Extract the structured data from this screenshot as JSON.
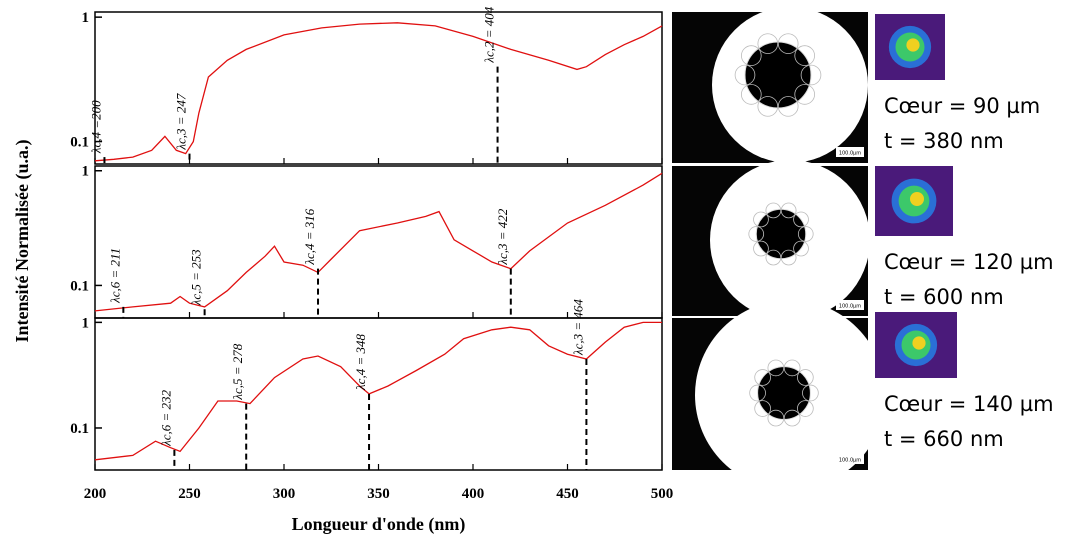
{
  "chart_data": [
    {
      "type": "line",
      "log_y": true,
      "ylim": [
        0.066,
        1.1
      ],
      "yticks": [
        0.1,
        1
      ],
      "series": [
        {
          "color": "#e01010",
          "x": [
            200,
            210,
            220,
            230,
            237,
            243,
            248,
            252,
            255,
            260,
            270,
            280,
            300,
            320,
            340,
            360,
            380,
            400,
            420,
            440,
            455,
            460,
            470,
            480,
            490,
            500
          ],
          "values": [
            0.07,
            0.072,
            0.075,
            0.085,
            0.11,
            0.085,
            0.08,
            0.1,
            0.17,
            0.33,
            0.45,
            0.55,
            0.72,
            0.82,
            0.88,
            0.9,
            0.85,
            0.7,
            0.55,
            0.45,
            0.38,
            0.4,
            0.5,
            0.6,
            0.7,
            0.85
          ]
        }
      ],
      "annotations": [
        {
          "label": "λc,4 =200",
          "x": 205,
          "y": 0.075
        },
        {
          "label": "λc,3 = 247",
          "x": 250,
          "y": 0.08
        },
        {
          "label": "λc,2 = 404",
          "x": 413,
          "y": 0.4
        }
      ]
    },
    {
      "type": "line",
      "log_y": true,
      "ylim": [
        0.052,
        1.1
      ],
      "yticks": [
        0.1,
        1
      ],
      "ylabel": "Intensité Normalisée (u.a.)",
      "series": [
        {
          "color": "#e01010",
          "x": [
            200,
            220,
            240,
            245,
            250,
            258,
            270,
            280,
            290,
            295,
            300,
            310,
            318,
            325,
            340,
            360,
            375,
            382,
            390,
            400,
            410,
            420,
            430,
            450,
            470,
            490,
            500
          ],
          "values": [
            0.06,
            0.065,
            0.07,
            0.08,
            0.07,
            0.065,
            0.09,
            0.13,
            0.18,
            0.22,
            0.16,
            0.15,
            0.13,
            0.17,
            0.3,
            0.35,
            0.4,
            0.44,
            0.25,
            0.2,
            0.16,
            0.14,
            0.2,
            0.35,
            0.5,
            0.75,
            0.95
          ]
        }
      ],
      "annotations": [
        {
          "label": "λc,6 = 211",
          "x": 215,
          "y": 0.065
        },
        {
          "label": "λc,5 = 253",
          "x": 258,
          "y": 0.062
        },
        {
          "label": "λc,4 = 316",
          "x": 318,
          "y": 0.14
        },
        {
          "label": "λc,3 = 422",
          "x": 420,
          "y": 0.14
        }
      ]
    },
    {
      "type": "line",
      "log_y": true,
      "ylim": [
        0.04,
        1.1
      ],
      "yticks": [
        0.1,
        1
      ],
      "xlim": [
        200,
        500
      ],
      "xticks": [
        200,
        250,
        300,
        350,
        400,
        450,
        500
      ],
      "xlabel": "Longueur d'onde (nm)",
      "series": [
        {
          "color": "#e01010",
          "x": [
            200,
            220,
            232,
            240,
            245,
            255,
            265,
            275,
            282,
            295,
            310,
            318,
            330,
            340,
            345,
            355,
            370,
            385,
            395,
            410,
            420,
            430,
            440,
            450,
            460,
            470,
            480,
            490,
            500
          ],
          "values": [
            0.05,
            0.055,
            0.075,
            0.065,
            0.06,
            0.1,
            0.18,
            0.18,
            0.17,
            0.3,
            0.45,
            0.48,
            0.38,
            0.25,
            0.21,
            0.25,
            0.35,
            0.5,
            0.7,
            0.85,
            0.9,
            0.85,
            0.6,
            0.5,
            0.45,
            0.65,
            0.9,
            1.0,
            1.0
          ]
        }
      ],
      "annotations": [
        {
          "label": "λc,6 = 232",
          "x": 242,
          "y": 0.062
        },
        {
          "label": "λc,5 = 278",
          "x": 280,
          "y": 0.17
        },
        {
          "label": "λc,4 = 348",
          "x": 345,
          "y": 0.21
        },
        {
          "label": "λc,3 = 464",
          "x": 460,
          "y": 0.45
        }
      ]
    }
  ],
  "images": [
    {
      "core": "Cœur = 90 µm",
      "thickness": "t = 380 nm",
      "scale": "100.0µm"
    },
    {
      "core": "Cœur = 120 µm",
      "thickness": "t = 600 nm",
      "scale": "100.0µm"
    },
    {
      "core": "Cœur = 140 µm",
      "thickness": "t = 660 nm",
      "scale": "100.0µm"
    }
  ]
}
